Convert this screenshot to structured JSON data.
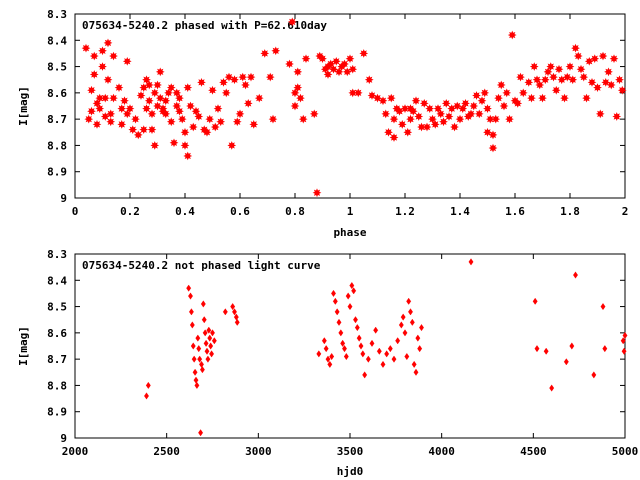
{
  "chart_data": [
    {
      "type": "scatter",
      "title": "075634-5240.2 phased with P=62.610day",
      "xlabel": "phase",
      "ylabel": "I[mag]",
      "xlim": [
        0,
        2
      ],
      "ylim": [
        8.3,
        9
      ],
      "y_inverted": true,
      "grid": false,
      "marker": "star",
      "color": "#ff0000",
      "xticks": [
        "0",
        "0.2",
        "0.4",
        "0.6",
        "0.8",
        "1",
        "1.2",
        "1.4",
        "1.6",
        "1.8",
        "2"
      ],
      "yticks": [
        "8.3",
        "8.4",
        "8.5",
        "8.6",
        "8.7",
        "8.8",
        "8.9",
        "9"
      ],
      "points": [
        [
          0.04,
          8.43
        ],
        [
          0.05,
          8.7
        ],
        [
          0.06,
          8.67
        ],
        [
          0.06,
          8.59
        ],
        [
          0.07,
          8.53
        ],
        [
          0.07,
          8.46
        ],
        [
          0.08,
          8.72
        ],
        [
          0.08,
          8.64
        ],
        [
          0.09,
          8.66
        ],
        [
          0.09,
          8.62
        ],
        [
          0.1,
          8.5
        ],
        [
          0.1,
          8.44
        ],
        [
          0.11,
          8.69
        ],
        [
          0.11,
          8.62
        ],
        [
          0.12,
          8.41
        ],
        [
          0.12,
          8.55
        ],
        [
          0.13,
          8.68
        ],
        [
          0.13,
          8.71
        ],
        [
          0.14,
          8.62
        ],
        [
          0.14,
          8.46
        ],
        [
          0.16,
          8.58
        ],
        [
          0.17,
          8.66
        ],
        [
          0.17,
          8.72
        ],
        [
          0.18,
          8.63
        ],
        [
          0.19,
          8.68
        ],
        [
          0.19,
          8.48
        ],
        [
          0.2,
          8.66
        ],
        [
          0.21,
          8.74
        ],
        [
          0.22,
          8.7
        ],
        [
          0.23,
          8.76
        ],
        [
          0.24,
          8.61
        ],
        [
          0.25,
          8.74
        ],
        [
          0.25,
          8.58
        ],
        [
          0.26,
          8.66
        ],
        [
          0.26,
          8.55
        ],
        [
          0.27,
          8.63
        ],
        [
          0.27,
          8.57
        ],
        [
          0.28,
          8.68
        ],
        [
          0.28,
          8.74
        ],
        [
          0.29,
          8.6
        ],
        [
          0.29,
          8.8
        ],
        [
          0.3,
          8.57
        ],
        [
          0.3,
          8.65
        ],
        [
          0.31,
          8.62
        ],
        [
          0.31,
          8.52
        ],
        [
          0.32,
          8.67
        ],
        [
          0.32,
          8.66
        ],
        [
          0.33,
          8.63
        ],
        [
          0.33,
          8.68
        ],
        [
          0.34,
          8.6
        ],
        [
          0.35,
          8.71
        ],
        [
          0.35,
          8.58
        ],
        [
          0.36,
          8.79
        ],
        [
          0.37,
          8.6
        ],
        [
          0.37,
          8.65
        ],
        [
          0.38,
          8.67
        ],
        [
          0.38,
          8.62
        ],
        [
          0.39,
          8.7
        ],
        [
          0.4,
          8.8
        ],
        [
          0.4,
          8.75
        ],
        [
          0.41,
          8.84
        ],
        [
          0.41,
          8.58
        ],
        [
          0.42,
          8.65
        ],
        [
          0.43,
          8.73
        ],
        [
          0.44,
          8.67
        ],
        [
          0.45,
          8.69
        ],
        [
          0.46,
          8.56
        ],
        [
          0.47,
          8.74
        ],
        [
          0.48,
          8.75
        ],
        [
          0.49,
          8.7
        ],
        [
          0.5,
          8.59
        ],
        [
          0.51,
          8.73
        ],
        [
          0.52,
          8.66
        ],
        [
          0.53,
          8.71
        ],
        [
          0.54,
          8.56
        ],
        [
          0.55,
          8.6
        ],
        [
          0.56,
          8.54
        ],
        [
          0.57,
          8.8
        ],
        [
          0.58,
          8.55
        ],
        [
          0.59,
          8.71
        ],
        [
          0.6,
          8.68
        ],
        [
          0.61,
          8.54
        ],
        [
          0.62,
          8.57
        ],
        [
          0.63,
          8.64
        ],
        [
          0.64,
          8.54
        ],
        [
          0.65,
          8.72
        ],
        [
          0.67,
          8.62
        ],
        [
          0.69,
          8.45
        ],
        [
          0.71,
          8.54
        ],
        [
          0.72,
          8.7
        ],
        [
          0.73,
          8.44
        ],
        [
          0.78,
          8.49
        ],
        [
          0.79,
          8.33
        ],
        [
          0.8,
          8.6
        ],
        [
          0.8,
          8.65
        ],
        [
          0.81,
          8.52
        ],
        [
          0.81,
          8.58
        ],
        [
          0.82,
          8.62
        ],
        [
          0.83,
          8.7
        ],
        [
          0.84,
          8.47
        ],
        [
          0.87,
          8.68
        ],
        [
          0.88,
          8.98
        ],
        [
          0.89,
          8.46
        ],
        [
          0.9,
          8.47
        ],
        [
          0.91,
          8.51
        ],
        [
          0.92,
          8.5
        ],
        [
          0.92,
          8.53
        ],
        [
          0.93,
          8.49
        ],
        [
          0.94,
          8.51
        ],
        [
          0.95,
          8.48
        ],
        [
          0.96,
          8.52
        ],
        [
          0.97,
          8.5
        ],
        [
          0.98,
          8.49
        ],
        [
          0.99,
          8.52
        ],
        [
          1.0,
          8.47
        ],
        [
          1.01,
          8.51
        ],
        [
          1.01,
          8.6
        ],
        [
          1.03,
          8.6
        ],
        [
          1.05,
          8.45
        ],
        [
          1.07,
          8.55
        ],
        [
          1.08,
          8.61
        ],
        [
          1.1,
          8.62
        ],
        [
          1.12,
          8.63
        ],
        [
          1.13,
          8.68
        ],
        [
          1.14,
          8.75
        ],
        [
          1.15,
          8.62
        ],
        [
          1.16,
          8.7
        ],
        [
          1.16,
          8.77
        ],
        [
          1.17,
          8.66
        ],
        [
          1.18,
          8.67
        ],
        [
          1.19,
          8.72
        ],
        [
          1.2,
          8.66
        ],
        [
          1.21,
          8.75
        ],
        [
          1.22,
          8.66
        ],
        [
          1.22,
          8.7
        ],
        [
          1.23,
          8.67
        ],
        [
          1.24,
          8.63
        ],
        [
          1.25,
          8.69
        ],
        [
          1.26,
          8.73
        ],
        [
          1.27,
          8.64
        ],
        [
          1.28,
          8.73
        ],
        [
          1.29,
          8.66
        ],
        [
          1.3,
          8.7
        ],
        [
          1.31,
          8.72
        ],
        [
          1.32,
          8.66
        ],
        [
          1.33,
          8.68
        ],
        [
          1.34,
          8.71
        ],
        [
          1.35,
          8.64
        ],
        [
          1.36,
          8.69
        ],
        [
          1.37,
          8.66
        ],
        [
          1.38,
          8.73
        ],
        [
          1.39,
          8.65
        ],
        [
          1.4,
          8.7
        ],
        [
          1.41,
          8.66
        ],
        [
          1.42,
          8.64
        ],
        [
          1.43,
          8.69
        ],
        [
          1.44,
          8.68
        ],
        [
          1.45,
          8.65
        ],
        [
          1.46,
          8.61
        ],
        [
          1.47,
          8.68
        ],
        [
          1.48,
          8.63
        ],
        [
          1.49,
          8.6
        ],
        [
          1.5,
          8.66
        ],
        [
          1.5,
          8.75
        ],
        [
          1.51,
          8.7
        ],
        [
          1.52,
          8.81
        ],
        [
          1.52,
          8.76
        ],
        [
          1.53,
          8.7
        ],
        [
          1.54,
          8.62
        ],
        [
          1.55,
          8.57
        ],
        [
          1.56,
          8.65
        ],
        [
          1.57,
          8.6
        ],
        [
          1.58,
          8.7
        ],
        [
          1.59,
          8.38
        ],
        [
          1.6,
          8.63
        ],
        [
          1.61,
          8.64
        ],
        [
          1.62,
          8.54
        ],
        [
          1.63,
          8.6
        ],
        [
          1.65,
          8.56
        ],
        [
          1.66,
          8.62
        ],
        [
          1.67,
          8.5
        ],
        [
          1.68,
          8.55
        ],
        [
          1.69,
          8.57
        ],
        [
          1.7,
          8.62
        ],
        [
          1.71,
          8.55
        ],
        [
          1.72,
          8.52
        ],
        [
          1.73,
          8.5
        ],
        [
          1.74,
          8.54
        ],
        [
          1.75,
          8.59
        ],
        [
          1.76,
          8.51
        ],
        [
          1.77,
          8.55
        ],
        [
          1.78,
          8.62
        ],
        [
          1.79,
          8.54
        ],
        [
          1.8,
          8.5
        ],
        [
          1.81,
          8.55
        ],
        [
          1.82,
          8.43
        ],
        [
          1.83,
          8.46
        ],
        [
          1.84,
          8.51
        ],
        [
          1.85,
          8.54
        ],
        [
          1.86,
          8.62
        ],
        [
          1.87,
          8.48
        ],
        [
          1.88,
          8.56
        ],
        [
          1.89,
          8.47
        ],
        [
          1.9,
          8.58
        ],
        [
          1.91,
          8.68
        ],
        [
          1.92,
          8.46
        ],
        [
          1.93,
          8.56
        ],
        [
          1.94,
          8.52
        ],
        [
          1.95,
          8.57
        ],
        [
          1.96,
          8.47
        ],
        [
          1.97,
          8.69
        ],
        [
          1.98,
          8.55
        ],
        [
          1.99,
          8.59
        ]
      ]
    },
    {
      "type": "scatter",
      "title": "075634-5240.2 not phased light curve",
      "xlabel": "hjd0",
      "ylabel": "I[mag]",
      "xlim": [
        2000,
        5000
      ],
      "ylim": [
        8.3,
        9
      ],
      "y_inverted": true,
      "grid": false,
      "marker": "diamond",
      "color": "#ff0000",
      "xticks": [
        "2000",
        "2500",
        "3000",
        "3500",
        "4000",
        "4500",
        "5000"
      ],
      "yticks": [
        "8.3",
        "8.4",
        "8.5",
        "8.6",
        "8.7",
        "8.8",
        "8.9",
        "9"
      ],
      "points": [
        [
          2390,
          8.84
        ],
        [
          2400,
          8.8
        ],
        [
          2620,
          8.43
        ],
        [
          2630,
          8.46
        ],
        [
          2635,
          8.52
        ],
        [
          2640,
          8.57
        ],
        [
          2645,
          8.65
        ],
        [
          2650,
          8.7
        ],
        [
          2655,
          8.75
        ],
        [
          2660,
          8.78
        ],
        [
          2665,
          8.8
        ],
        [
          2670,
          8.62
        ],
        [
          2675,
          8.66
        ],
        [
          2680,
          8.7
        ],
        [
          2685,
          8.98
        ],
        [
          2690,
          8.72
        ],
        [
          2695,
          8.74
        ],
        [
          2700,
          8.49
        ],
        [
          2705,
          8.55
        ],
        [
          2710,
          8.6
        ],
        [
          2715,
          8.64
        ],
        [
          2720,
          8.67
        ],
        [
          2725,
          8.7
        ],
        [
          2730,
          8.59
        ],
        [
          2735,
          8.62
        ],
        [
          2740,
          8.65
        ],
        [
          2745,
          8.68
        ],
        [
          2750,
          8.6
        ],
        [
          2760,
          8.63
        ],
        [
          2820,
          8.52
        ],
        [
          2860,
          8.5
        ],
        [
          2870,
          8.52
        ],
        [
          2880,
          8.54
        ],
        [
          2885,
          8.56
        ],
        [
          3330,
          8.68
        ],
        [
          3360,
          8.63
        ],
        [
          3370,
          8.66
        ],
        [
          3380,
          8.7
        ],
        [
          3390,
          8.72
        ],
        [
          3400,
          8.69
        ],
        [
          3410,
          8.45
        ],
        [
          3420,
          8.48
        ],
        [
          3430,
          8.52
        ],
        [
          3440,
          8.56
        ],
        [
          3450,
          8.6
        ],
        [
          3460,
          8.64
        ],
        [
          3470,
          8.66
        ],
        [
          3480,
          8.69
        ],
        [
          3490,
          8.46
        ],
        [
          3500,
          8.5
        ],
        [
          3510,
          8.42
        ],
        [
          3520,
          8.44
        ],
        [
          3530,
          8.55
        ],
        [
          3540,
          8.58
        ],
        [
          3550,
          8.62
        ],
        [
          3560,
          8.65
        ],
        [
          3570,
          8.68
        ],
        [
          3580,
          8.76
        ],
        [
          3600,
          8.7
        ],
        [
          3620,
          8.64
        ],
        [
          3640,
          8.59
        ],
        [
          3660,
          8.67
        ],
        [
          3680,
          8.72
        ],
        [
          3700,
          8.68
        ],
        [
          3720,
          8.66
        ],
        [
          3740,
          8.7
        ],
        [
          3760,
          8.63
        ],
        [
          3780,
          8.57
        ],
        [
          3790,
          8.54
        ],
        [
          3800,
          8.6
        ],
        [
          3810,
          8.69
        ],
        [
          3820,
          8.48
        ],
        [
          3830,
          8.52
        ],
        [
          3840,
          8.56
        ],
        [
          3850,
          8.72
        ],
        [
          3860,
          8.75
        ],
        [
          3870,
          8.62
        ],
        [
          3880,
          8.66
        ],
        [
          3890,
          8.58
        ],
        [
          4160,
          8.33
        ],
        [
          4510,
          8.48
        ],
        [
          4520,
          8.66
        ],
        [
          4570,
          8.67
        ],
        [
          4600,
          8.81
        ],
        [
          4680,
          8.71
        ],
        [
          4710,
          8.65
        ],
        [
          4730,
          8.38
        ],
        [
          4830,
          8.76
        ],
        [
          4880,
          8.5
        ],
        [
          4890,
          8.66
        ],
        [
          4990,
          8.63
        ],
        [
          4995,
          8.67
        ],
        [
          5000,
          8.61
        ]
      ]
    }
  ]
}
